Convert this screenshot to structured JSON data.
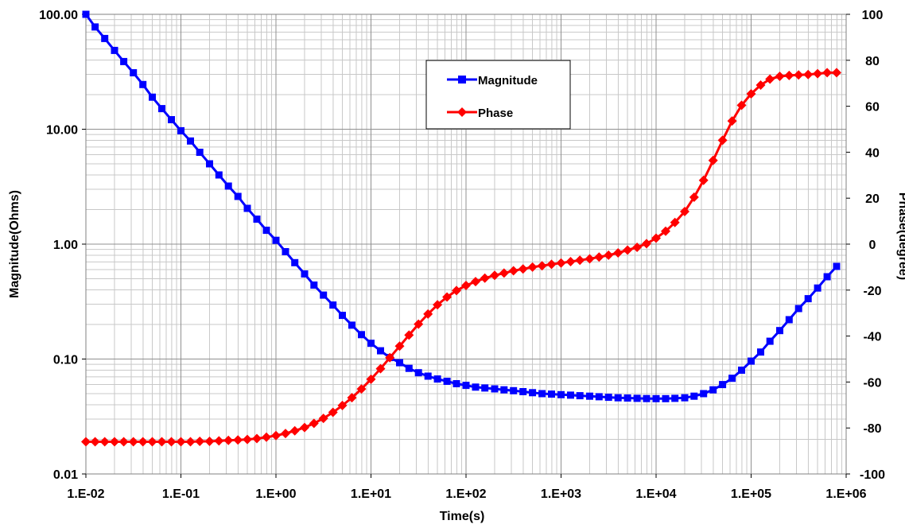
{
  "chart_data": {
    "type": "line",
    "xlabel": "Time(s)",
    "ylabel": "Magnitude(Ohms)",
    "y2label": "Phase(degree)",
    "x_scale": "log",
    "y_scale": "log",
    "xlim": [
      0.01,
      1000000
    ],
    "ylim": [
      0.01,
      100
    ],
    "y2lim": [
      -100,
      100
    ],
    "x_ticks": [
      "1.E-02",
      "1.E-01",
      "1.E+00",
      "1.E+01",
      "1.E+02",
      "1.E+03",
      "1.E+04",
      "1.E+05",
      "1.E+06"
    ],
    "y_ticks": [
      "0.01",
      "0.10",
      "1.00",
      "10.00",
      "100.00"
    ],
    "y2_ticks": [
      "-100",
      "-80",
      "-60",
      "-40",
      "-20",
      "0",
      "20",
      "40",
      "60",
      "80",
      "100"
    ],
    "grid": true,
    "legend_position": "top-center",
    "series": [
      {
        "name": "Magnitude",
        "axis": "left",
        "color": "#0000ff",
        "marker": "square",
        "points": [
          [
            0.01,
            100.0
          ],
          [
            0.0125,
            77.6
          ],
          [
            0.0158,
            61.6
          ],
          [
            0.02,
            48.5
          ],
          [
            0.025,
            38.8
          ],
          [
            0.0316,
            31.0
          ],
          [
            0.0398,
            24.5
          ],
          [
            0.05,
            19.0
          ],
          [
            0.063,
            15.1
          ],
          [
            0.0794,
            12.1
          ],
          [
            0.1,
            9.7
          ],
          [
            0.126,
            7.9
          ],
          [
            0.158,
            6.3
          ],
          [
            0.2,
            5.0
          ],
          [
            0.251,
            4.0
          ],
          [
            0.316,
            3.2
          ],
          [
            0.398,
            2.6
          ],
          [
            0.5,
            2.05
          ],
          [
            0.63,
            1.65
          ],
          [
            0.794,
            1.32
          ],
          [
            1.0,
            1.08
          ],
          [
            1.26,
            0.86
          ],
          [
            1.58,
            0.69
          ],
          [
            2.0,
            0.55
          ],
          [
            2.51,
            0.44
          ],
          [
            3.16,
            0.36
          ],
          [
            3.98,
            0.295
          ],
          [
            5.0,
            0.24
          ],
          [
            6.3,
            0.197
          ],
          [
            7.94,
            0.163
          ],
          [
            10.0,
            0.137
          ],
          [
            12.6,
            0.118
          ],
          [
            15.8,
            0.103
          ],
          [
            20.0,
            0.093
          ],
          [
            25.1,
            0.083
          ],
          [
            31.6,
            0.076
          ],
          [
            39.8,
            0.071
          ],
          [
            50.1,
            0.067
          ],
          [
            63.1,
            0.064
          ],
          [
            79.4,
            0.061
          ],
          [
            100,
            0.059
          ],
          [
            126,
            0.057
          ],
          [
            158,
            0.056
          ],
          [
            200,
            0.055
          ],
          [
            251,
            0.054
          ],
          [
            316,
            0.053
          ],
          [
            398,
            0.052
          ],
          [
            501,
            0.051
          ],
          [
            631,
            0.05
          ],
          [
            794,
            0.0495
          ],
          [
            1000,
            0.049
          ],
          [
            1260,
            0.0485
          ],
          [
            1580,
            0.048
          ],
          [
            2000,
            0.0475
          ],
          [
            2510,
            0.047
          ],
          [
            3160,
            0.0465
          ],
          [
            3980,
            0.046
          ],
          [
            5010,
            0.0458
          ],
          [
            6310,
            0.0455
          ],
          [
            7940,
            0.0453
          ],
          [
            10000,
            0.0452
          ],
          [
            12600,
            0.0452
          ],
          [
            15800,
            0.0455
          ],
          [
            20000,
            0.046
          ],
          [
            25100,
            0.0475
          ],
          [
            31600,
            0.05
          ],
          [
            39800,
            0.054
          ],
          [
            50100,
            0.06
          ],
          [
            63100,
            0.068
          ],
          [
            79400,
            0.08
          ],
          [
            100000,
            0.096
          ],
          [
            126000,
            0.115
          ],
          [
            158000,
            0.143
          ],
          [
            200000,
            0.177
          ],
          [
            251000,
            0.22
          ],
          [
            316000,
            0.275
          ],
          [
            398000,
            0.335
          ],
          [
            501000,
            0.415
          ],
          [
            631000,
            0.52
          ],
          [
            794000,
            0.64
          ]
        ]
      },
      {
        "name": "Phase",
        "axis": "right",
        "color": "#ff0000",
        "marker": "diamond",
        "points": [
          [
            0.01,
            -86
          ],
          [
            0.0125,
            -86
          ],
          [
            0.0158,
            -86
          ],
          [
            0.02,
            -86
          ],
          [
            0.025,
            -86
          ],
          [
            0.0316,
            -86
          ],
          [
            0.0398,
            -86
          ],
          [
            0.05,
            -86
          ],
          [
            0.063,
            -86
          ],
          [
            0.0794,
            -86
          ],
          [
            0.1,
            -86
          ],
          [
            0.126,
            -86
          ],
          [
            0.158,
            -85.8
          ],
          [
            0.2,
            -85.8
          ],
          [
            0.251,
            -85.6
          ],
          [
            0.316,
            -85.4
          ],
          [
            0.398,
            -85.2
          ],
          [
            0.5,
            -85
          ],
          [
            0.63,
            -84.6
          ],
          [
            0.794,
            -84
          ],
          [
            1.0,
            -83.3
          ],
          [
            1.26,
            -82.4
          ],
          [
            1.58,
            -81.2
          ],
          [
            2.0,
            -79.8
          ],
          [
            2.51,
            -78
          ],
          [
            3.16,
            -75.8
          ],
          [
            3.98,
            -73.2
          ],
          [
            5.0,
            -70.2
          ],
          [
            6.3,
            -66.8
          ],
          [
            7.94,
            -63
          ],
          [
            10.0,
            -58.8
          ],
          [
            12.6,
            -54.2
          ],
          [
            15.8,
            -49.4
          ],
          [
            20.0,
            -44.4
          ],
          [
            25.1,
            -39.6
          ],
          [
            31.6,
            -34.8
          ],
          [
            39.8,
            -30.4
          ],
          [
            50.1,
            -26.4
          ],
          [
            63.1,
            -23
          ],
          [
            79.4,
            -20.2
          ],
          [
            100,
            -18
          ],
          [
            126,
            -16.3
          ],
          [
            158,
            -14.8
          ],
          [
            200,
            -13.6
          ],
          [
            251,
            -12.6
          ],
          [
            316,
            -11.6
          ],
          [
            398,
            -10.8
          ],
          [
            501,
            -10
          ],
          [
            631,
            -9.4
          ],
          [
            794,
            -8.8
          ],
          [
            1000,
            -8.2
          ],
          [
            1260,
            -7.6
          ],
          [
            1580,
            -7
          ],
          [
            2000,
            -6.4
          ],
          [
            2510,
            -5.6
          ],
          [
            3160,
            -4.8
          ],
          [
            3980,
            -3.8
          ],
          [
            5010,
            -2.6
          ],
          [
            6310,
            -1.4
          ],
          [
            7940,
            0.2
          ],
          [
            10000,
            2.6
          ],
          [
            12600,
            5.6
          ],
          [
            15800,
            9.4
          ],
          [
            20000,
            14.2
          ],
          [
            25100,
            20.4
          ],
          [
            31600,
            27.8
          ],
          [
            39800,
            36.4
          ],
          [
            50100,
            45.2
          ],
          [
            63100,
            53.6
          ],
          [
            79400,
            60.4
          ],
          [
            100000,
            65.4
          ],
          [
            126000,
            69.2
          ],
          [
            158000,
            71.8
          ],
          [
            200000,
            73
          ],
          [
            251000,
            73.4
          ],
          [
            316000,
            73.6
          ],
          [
            398000,
            73.8
          ],
          [
            501000,
            74.2
          ],
          [
            631000,
            74.6
          ],
          [
            794000,
            74.6
          ]
        ]
      }
    ]
  }
}
